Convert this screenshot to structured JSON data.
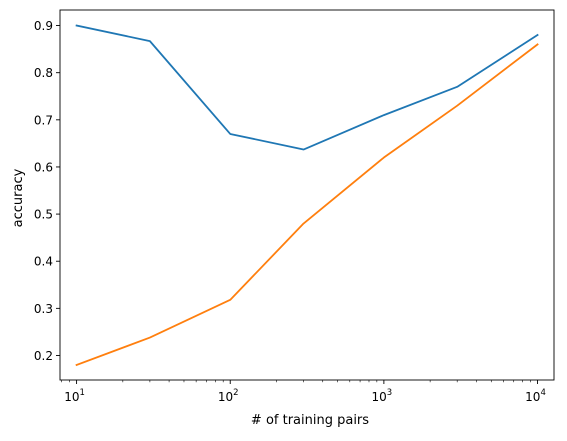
{
  "chart_data": {
    "type": "line",
    "title": "",
    "xlabel": "# of training pairs",
    "ylabel": "accuracy",
    "xscale": "log",
    "xlim": [
      7.8,
      12800
    ],
    "ylim": [
      0.148,
      0.933
    ],
    "grid": false,
    "legend": "none",
    "x": [
      10,
      30,
      100,
      300,
      1000,
      3000,
      10000
    ],
    "x_ticks": [
      {
        "value": 10,
        "base": "10",
        "exp": "1"
      },
      {
        "value": 100,
        "base": "10",
        "exp": "2"
      },
      {
        "value": 1000,
        "base": "10",
        "exp": "3"
      },
      {
        "value": 10000,
        "base": "10",
        "exp": "4"
      }
    ],
    "y_ticks": [
      0.2,
      0.3,
      0.4,
      0.5,
      0.6,
      0.7,
      0.8,
      0.9
    ],
    "y_tick_labels": [
      "0.2",
      "0.3",
      "0.4",
      "0.5",
      "0.6",
      "0.7",
      "0.8",
      "0.9"
    ],
    "series": [
      {
        "color": "#1f77b4",
        "values": [
          0.9,
          0.867,
          0.67,
          0.637,
          0.71,
          0.77,
          0.88
        ]
      },
      {
        "color": "#ff7f0e",
        "values": [
          0.18,
          0.238,
          0.318,
          0.48,
          0.62,
          0.73,
          0.86
        ]
      }
    ]
  }
}
